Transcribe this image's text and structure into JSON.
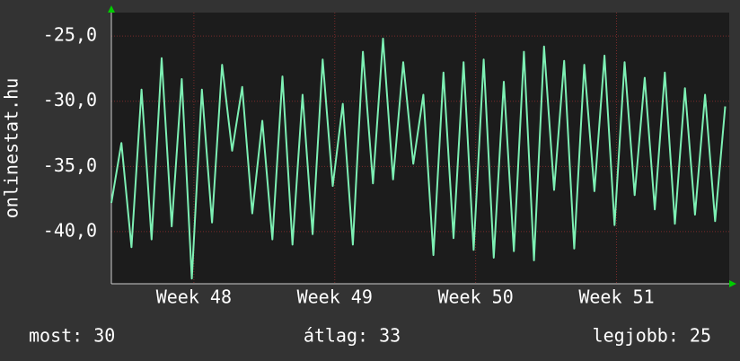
{
  "chart_data": {
    "type": "line",
    "y_label": "onlinestat.hu",
    "x": [
      0,
      0.5,
      1,
      1.5,
      2,
      2.5,
      3,
      3.5,
      4,
      4.5,
      5,
      5.5,
      6,
      6.5,
      7,
      7.5,
      8,
      8.5,
      9,
      9.5,
      10,
      10.5,
      11,
      11.5,
      12,
      12.5,
      13,
      13.5,
      14,
      14.5,
      15,
      15.5,
      16,
      16.5,
      17,
      17.5,
      18,
      18.5,
      19,
      19.5,
      20,
      20.5,
      21,
      21.5,
      22,
      22.5,
      23,
      23.5,
      24,
      24.5,
      25,
      25.5,
      26,
      26.5,
      27,
      27.5,
      28,
      28.5,
      29,
      29.5,
      30,
      30.5
    ],
    "series": [
      {
        "color": "#7df0b4",
        "values": [
          -37.8,
          -33.2,
          -41.2,
          -29.1,
          -40.6,
          -26.7,
          -39.6,
          -28.3,
          -43.6,
          -29.1,
          -39.3,
          -27.2,
          -33.8,
          -28.9,
          -38.6,
          -31.5,
          -40.6,
          -28.1,
          -41.0,
          -29.5,
          -40.2,
          -26.8,
          -36.5,
          -30.2,
          -41.0,
          -26.2,
          -36.3,
          -25.2,
          -36.0,
          -27.0,
          -34.8,
          -29.5,
          -41.8,
          -27.8,
          -40.5,
          -27.0,
          -41.4,
          -26.8,
          -42.0,
          -28.5,
          -41.5,
          -26.2,
          -42.2,
          -25.8,
          -36.8,
          -26.9,
          -41.3,
          -27.2,
          -36.9,
          -26.5,
          -39.5,
          -27.0,
          -37.2,
          -28.2,
          -38.3,
          -27.8,
          -39.4,
          -29.0,
          -38.7,
          -29.5,
          -39.2,
          -30.4
        ]
      }
    ],
    "xlim": [
      0,
      30.7
    ],
    "xticks": [
      {
        "value": 4.1,
        "label": "Week 48"
      },
      {
        "value": 11.1,
        "label": "Week 49"
      },
      {
        "value": 18.1,
        "label": "Week 50"
      },
      {
        "value": 25.1,
        "label": "Week 51"
      }
    ],
    "ylim": [
      -44,
      -23.2
    ],
    "yticks": [
      {
        "value": -25,
        "label": "-25,0"
      },
      {
        "value": -30,
        "label": "-30,0"
      },
      {
        "value": -35,
        "label": "-35,0"
      },
      {
        "value": -40,
        "label": "-40,0"
      }
    ],
    "grid": true,
    "footer": {
      "current": "most: 30",
      "average": "átlag: 33",
      "best": "legjobb: 25"
    }
  }
}
